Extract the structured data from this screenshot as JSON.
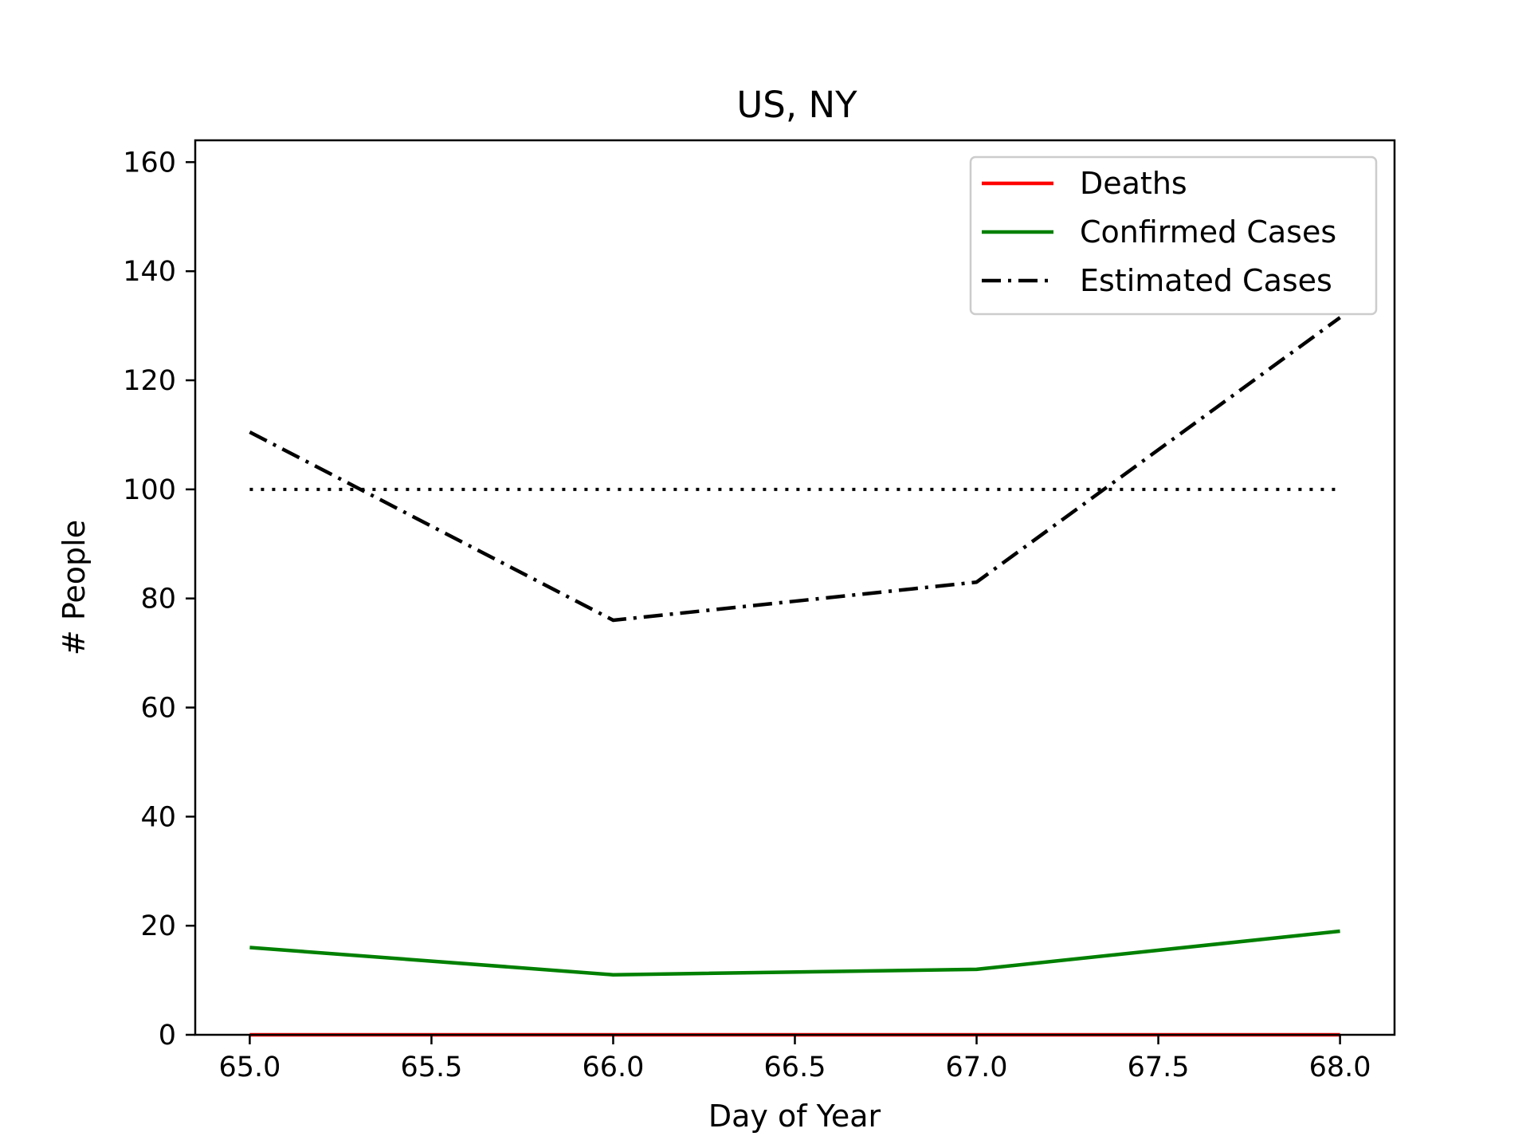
{
  "chart_data": {
    "type": "line",
    "title": "US, NY",
    "xlabel": "Day of Year",
    "ylabel": "# People",
    "xlim": [
      64.85,
      68.15
    ],
    "ylim": [
      0,
      164
    ],
    "xticks": [
      65.0,
      65.5,
      66.0,
      66.5,
      67.0,
      67.5,
      68.0
    ],
    "xtick_labels": [
      "65.0",
      "65.5",
      "66.0",
      "66.5",
      "67.0",
      "67.5",
      "68.0"
    ],
    "yticks": [
      0,
      20,
      40,
      60,
      80,
      100,
      120,
      140,
      160
    ],
    "ytick_labels": [
      "0",
      "20",
      "40",
      "60",
      "80",
      "100",
      "120",
      "140",
      "160"
    ],
    "grid": false,
    "legend_position": "top-right",
    "x": [
      65,
      66,
      67,
      68
    ],
    "series": [
      {
        "name": "Deaths",
        "values": [
          0,
          0,
          0,
          0
        ],
        "color": "#ff0000",
        "style": "solid"
      },
      {
        "name": "Confirmed Cases",
        "values": [
          16,
          11,
          12,
          19
        ],
        "color": "#008000",
        "style": "solid"
      },
      {
        "name": "Estimated Cases",
        "values": [
          110.5,
          76,
          83,
          131.5
        ],
        "color": "#000000",
        "style": "dashdot"
      },
      {
        "values": [
          100,
          100,
          100,
          100
        ],
        "color": "#000000",
        "style": "dotted",
        "in_legend": false
      }
    ]
  }
}
